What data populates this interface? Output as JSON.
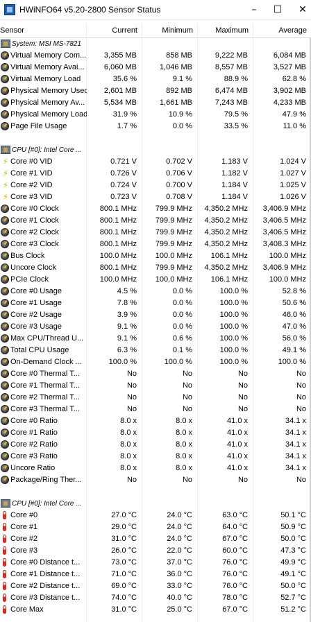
{
  "window": {
    "title": "HWiNFO64 v5.20-2800 Sensor Status",
    "minimize": "–",
    "maximize": "☐",
    "close": "✕"
  },
  "columns": {
    "sensor": "Sensor",
    "current": "Current",
    "minimum": "Minimum",
    "maximum": "Maximum",
    "average": "Average"
  },
  "rows": [
    {
      "type": "group",
      "icon": "chip",
      "label": "System: MSI MS-7821"
    },
    {
      "type": "data",
      "icon": "gauge",
      "label": "Virtual Memory Com...",
      "cur": "3,355 MB",
      "min": "858 MB",
      "max": "9,222 MB",
      "avg": "6,084 MB"
    },
    {
      "type": "data",
      "icon": "gauge",
      "label": "Virtual Memory Avai...",
      "cur": "6,060 MB",
      "min": "1,046 MB",
      "max": "8,557 MB",
      "avg": "3,527 MB"
    },
    {
      "type": "data",
      "icon": "gauge",
      "label": "Virtual Memory Load",
      "cur": "35.6 %",
      "min": "9.1 %",
      "max": "88.9 %",
      "avg": "62.8 %"
    },
    {
      "type": "data",
      "icon": "gauge",
      "label": "Physical Memory Used",
      "cur": "2,601 MB",
      "min": "892 MB",
      "max": "6,474 MB",
      "avg": "3,902 MB"
    },
    {
      "type": "data",
      "icon": "gauge",
      "label": "Physical Memory Av...",
      "cur": "5,534 MB",
      "min": "1,661 MB",
      "max": "7,243 MB",
      "avg": "4,233 MB"
    },
    {
      "type": "data",
      "icon": "gauge",
      "label": "Physical Memory Load",
      "cur": "31.9 %",
      "min": "10.9 %",
      "max": "79.5 %",
      "avg": "47.9 %"
    },
    {
      "type": "data",
      "icon": "gauge",
      "label": "Page File Usage",
      "cur": "1.7 %",
      "min": "0.0 %",
      "max": "33.5 %",
      "avg": "11.0 %"
    },
    {
      "type": "blank"
    },
    {
      "type": "group",
      "icon": "chip",
      "label": "CPU [#0]: Intel Core ..."
    },
    {
      "type": "data",
      "icon": "bolt",
      "label": "Core #0 VID",
      "cur": "0.721 V",
      "min": "0.702 V",
      "max": "1.183 V",
      "avg": "1.024 V"
    },
    {
      "type": "data",
      "icon": "bolt",
      "label": "Core #1 VID",
      "cur": "0.726 V",
      "min": "0.706 V",
      "max": "1.182 V",
      "avg": "1.027 V"
    },
    {
      "type": "data",
      "icon": "bolt",
      "label": "Core #2 VID",
      "cur": "0.724 V",
      "min": "0.700 V",
      "max": "1.184 V",
      "avg": "1.025 V"
    },
    {
      "type": "data",
      "icon": "bolt",
      "label": "Core #3 VID",
      "cur": "0.723 V",
      "min": "0.708 V",
      "max": "1.184 V",
      "avg": "1.026 V"
    },
    {
      "type": "data",
      "icon": "gauge",
      "label": "Core #0 Clock",
      "cur": "800.1 MHz",
      "min": "799.9 MHz",
      "max": "4,350.2 MHz",
      "avg": "3,406.9 MHz"
    },
    {
      "type": "data",
      "icon": "gauge",
      "label": "Core #1 Clock",
      "cur": "800.1 MHz",
      "min": "799.9 MHz",
      "max": "4,350.2 MHz",
      "avg": "3,406.5 MHz"
    },
    {
      "type": "data",
      "icon": "gauge",
      "label": "Core #2 Clock",
      "cur": "800.1 MHz",
      "min": "799.9 MHz",
      "max": "4,350.2 MHz",
      "avg": "3,406.5 MHz"
    },
    {
      "type": "data",
      "icon": "gauge",
      "label": "Core #3 Clock",
      "cur": "800.1 MHz",
      "min": "799.9 MHz",
      "max": "4,350.2 MHz",
      "avg": "3,408.3 MHz"
    },
    {
      "type": "data",
      "icon": "gauge",
      "label": "Bus Clock",
      "cur": "100.0 MHz",
      "min": "100.0 MHz",
      "max": "106.1 MHz",
      "avg": "100.0 MHz"
    },
    {
      "type": "data",
      "icon": "gauge",
      "label": "Uncore Clock",
      "cur": "800.1 MHz",
      "min": "799.9 MHz",
      "max": "4,350.2 MHz",
      "avg": "3,406.9 MHz"
    },
    {
      "type": "data",
      "icon": "gauge",
      "label": "PCIe Clock",
      "cur": "100.0 MHz",
      "min": "100.0 MHz",
      "max": "106.1 MHz",
      "avg": "100.0 MHz"
    },
    {
      "type": "data",
      "icon": "gauge",
      "label": "Core #0 Usage",
      "cur": "4.5 %",
      "min": "0.0 %",
      "max": "100.0 %",
      "avg": "52.8 %"
    },
    {
      "type": "data",
      "icon": "gauge",
      "label": "Core #1 Usage",
      "cur": "7.8 %",
      "min": "0.0 %",
      "max": "100.0 %",
      "avg": "50.6 %"
    },
    {
      "type": "data",
      "icon": "gauge",
      "label": "Core #2 Usage",
      "cur": "3.9 %",
      "min": "0.0 %",
      "max": "100.0 %",
      "avg": "46.0 %"
    },
    {
      "type": "data",
      "icon": "gauge",
      "label": "Core #3 Usage",
      "cur": "9.1 %",
      "min": "0.0 %",
      "max": "100.0 %",
      "avg": "47.0 %"
    },
    {
      "type": "data",
      "icon": "gauge",
      "label": "Max CPU/Thread U...",
      "cur": "9.1 %",
      "min": "0.6 %",
      "max": "100.0 %",
      "avg": "56.0 %"
    },
    {
      "type": "data",
      "icon": "gauge",
      "label": "Total CPU Usage",
      "cur": "6.3 %",
      "min": "0.1 %",
      "max": "100.0 %",
      "avg": "49.1 %"
    },
    {
      "type": "data",
      "icon": "gauge",
      "label": "On-Demand Clock ...",
      "cur": "100.0 %",
      "min": "100.0 %",
      "max": "100.0 %",
      "avg": "100.0 %"
    },
    {
      "type": "data",
      "icon": "gauge",
      "label": "Core #0 Thermal T...",
      "cur": "No",
      "min": "No",
      "max": "No",
      "avg": "No"
    },
    {
      "type": "data",
      "icon": "gauge",
      "label": "Core #1 Thermal T...",
      "cur": "No",
      "min": "No",
      "max": "No",
      "avg": "No"
    },
    {
      "type": "data",
      "icon": "gauge",
      "label": "Core #2 Thermal T...",
      "cur": "No",
      "min": "No",
      "max": "No",
      "avg": "No"
    },
    {
      "type": "data",
      "icon": "gauge",
      "label": "Core #3 Thermal T...",
      "cur": "No",
      "min": "No",
      "max": "No",
      "avg": "No"
    },
    {
      "type": "data",
      "icon": "gauge",
      "label": "Core #0 Ratio",
      "cur": "8.0 x",
      "min": "8.0 x",
      "max": "41.0 x",
      "avg": "34.1 x"
    },
    {
      "type": "data",
      "icon": "gauge",
      "label": "Core #1 Ratio",
      "cur": "8.0 x",
      "min": "8.0 x",
      "max": "41.0 x",
      "avg": "34.1 x"
    },
    {
      "type": "data",
      "icon": "gauge",
      "label": "Core #2 Ratio",
      "cur": "8.0 x",
      "min": "8.0 x",
      "max": "41.0 x",
      "avg": "34.1 x"
    },
    {
      "type": "data",
      "icon": "gauge",
      "label": "Core #3 Ratio",
      "cur": "8.0 x",
      "min": "8.0 x",
      "max": "41.0 x",
      "avg": "34.1 x"
    },
    {
      "type": "data",
      "icon": "gauge",
      "label": "Uncore Ratio",
      "cur": "8.0 x",
      "min": "8.0 x",
      "max": "41.0 x",
      "avg": "34.1 x"
    },
    {
      "type": "data",
      "icon": "gauge",
      "label": "Package/Ring Ther...",
      "cur": "No",
      "min": "No",
      "max": "No",
      "avg": "No"
    },
    {
      "type": "blank"
    },
    {
      "type": "group",
      "icon": "chip",
      "label": "CPU [#0]: Intel Core ..."
    },
    {
      "type": "data",
      "icon": "therm",
      "label": "Core #0",
      "cur": "27.0 °C",
      "min": "24.0 °C",
      "max": "63.0 °C",
      "avg": "50.1 °C"
    },
    {
      "type": "data",
      "icon": "therm",
      "label": "Core #1",
      "cur": "29.0 °C",
      "min": "24.0 °C",
      "max": "64.0 °C",
      "avg": "50.9 °C"
    },
    {
      "type": "data",
      "icon": "therm",
      "label": "Core #2",
      "cur": "31.0 °C",
      "min": "24.0 °C",
      "max": "67.0 °C",
      "avg": "50.0 °C"
    },
    {
      "type": "data",
      "icon": "therm",
      "label": "Core #3",
      "cur": "26.0 °C",
      "min": "22.0 °C",
      "max": "60.0 °C",
      "avg": "47.3 °C"
    },
    {
      "type": "data",
      "icon": "therm",
      "label": "Core #0 Distance t...",
      "cur": "73.0 °C",
      "min": "37.0 °C",
      "max": "76.0 °C",
      "avg": "49.9 °C"
    },
    {
      "type": "data",
      "icon": "therm",
      "label": "Core #1 Distance t...",
      "cur": "71.0 °C",
      "min": "36.0 °C",
      "max": "76.0 °C",
      "avg": "49.1 °C"
    },
    {
      "type": "data",
      "icon": "therm",
      "label": "Core #2 Distance t...",
      "cur": "69.0 °C",
      "min": "33.0 °C",
      "max": "76.0 °C",
      "avg": "50.0 °C"
    },
    {
      "type": "data",
      "icon": "therm",
      "label": "Core #3 Distance t...",
      "cur": "74.0 °C",
      "min": "40.0 °C",
      "max": "78.0 °C",
      "avg": "52.7 °C"
    },
    {
      "type": "data",
      "icon": "therm",
      "label": "Core Max",
      "cur": "31.0 °C",
      "min": "25.0 °C",
      "max": "67.0 °C",
      "avg": "51.2 °C"
    }
  ]
}
